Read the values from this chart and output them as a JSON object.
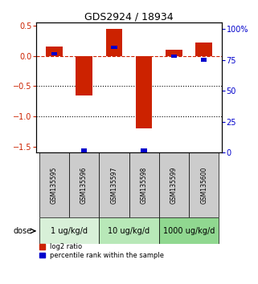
{
  "title": "GDS2924 / 18934",
  "samples": [
    "GSM135595",
    "GSM135596",
    "GSM135597",
    "GSM135598",
    "GSM135599",
    "GSM135600"
  ],
  "log2_ratio": [
    0.15,
    -0.65,
    0.45,
    -1.2,
    0.1,
    0.22
  ],
  "percentile_rank": [
    80,
    2,
    85,
    2,
    78,
    75
  ],
  "dose_groups": [
    {
      "label": "1 ug/kg/d",
      "samples": [
        0,
        1
      ],
      "color": "#d8f0d8"
    },
    {
      "label": "10 ug/kg/d",
      "samples": [
        2,
        3
      ],
      "color": "#b8e8b8"
    },
    {
      "label": "1000 ug/kg/d",
      "samples": [
        4,
        5
      ],
      "color": "#90d890"
    }
  ],
  "bar_color_red": "#cc2200",
  "bar_color_blue": "#0000cc",
  "left_ylim": [
    -1.6,
    0.55
  ],
  "right_ylim": [
    0,
    105
  ],
  "left_yticks": [
    0.5,
    0,
    -0.5,
    -1.0,
    -1.5
  ],
  "right_yticks": [
    0,
    25,
    50,
    75,
    100
  ],
  "zero_line_color": "#cc2200",
  "grid_color": "#000000",
  "bg_color": "#ffffff",
  "sample_box_color": "#cccccc",
  "dose_label": "dose",
  "legend_red": "log2 ratio",
  "legend_blue": "percentile rank within the sample"
}
